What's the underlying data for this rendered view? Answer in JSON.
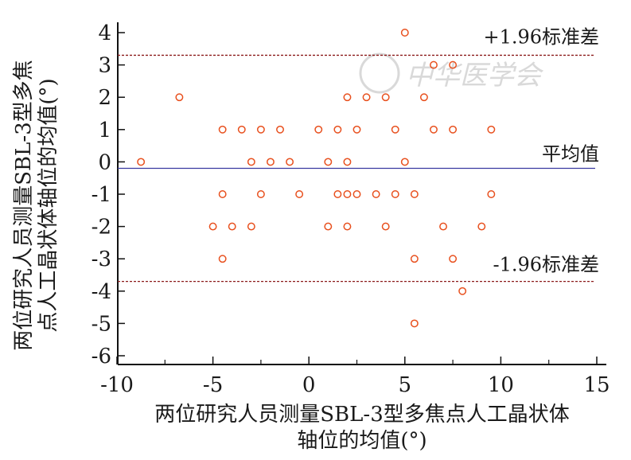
{
  "chart_data": {
    "type": "scatter",
    "title": "",
    "xlabel_line1": "两位研究人员测量SBL-3型多焦点人工晶状体",
    "xlabel_line2": "轴位的均值(°)",
    "ylabel_line1": "两位研究人员测量SBL-3型多焦",
    "ylabel_line2": "点人工晶状体轴位的均值(°)",
    "xlim": [
      -10,
      15
    ],
    "ylim": [
      -6.5,
      4.5
    ],
    "xticks": [
      -10,
      -5,
      0,
      5,
      10,
      15
    ],
    "xtick_labels": [
      "-10",
      "-5",
      "0",
      "5",
      "10",
      "15"
    ],
    "yticks": [
      4,
      3,
      2,
      1,
      0,
      -1,
      -2,
      -3,
      -4,
      -5,
      -6
    ],
    "ytick_labels": [
      "4",
      "3",
      "2",
      "1",
      "0",
      "-1",
      "-2",
      "-3",
      "-4",
      "-5",
      "-6"
    ],
    "grid": false,
    "reference_lines": [
      {
        "name": "upper_loa",
        "label": "+1.96标准差",
        "y": 3.3,
        "color": "#8b1a1a",
        "style": "dashed"
      },
      {
        "name": "mean",
        "label": "平均值",
        "y": -0.2,
        "color": "#3a3aa0",
        "style": "solid"
      },
      {
        "name": "lower_loa",
        "label": "-1.96标准差",
        "y": -3.7,
        "color": "#8b1a1a",
        "style": "dashed"
      }
    ],
    "points_color": "#e8501e",
    "points": [
      {
        "x": -8.75,
        "y": 0
      },
      {
        "x": -6.75,
        "y": 2
      },
      {
        "x": -5,
        "y": -2
      },
      {
        "x": -4.5,
        "y": 1
      },
      {
        "x": -4.5,
        "y": -1
      },
      {
        "x": -4.5,
        "y": -3
      },
      {
        "x": -4,
        "y": -2
      },
      {
        "x": -3.5,
        "y": 1
      },
      {
        "x": -3,
        "y": 0
      },
      {
        "x": -3,
        "y": -2
      },
      {
        "x": -2.5,
        "y": 1
      },
      {
        "x": -2.5,
        "y": -1
      },
      {
        "x": -2,
        "y": 0
      },
      {
        "x": -1.5,
        "y": 1
      },
      {
        "x": -1,
        "y": 0
      },
      {
        "x": -0.5,
        "y": -1
      },
      {
        "x": 0.5,
        "y": 1
      },
      {
        "x": 1,
        "y": 0
      },
      {
        "x": 1,
        "y": -2
      },
      {
        "x": 1.5,
        "y": 1
      },
      {
        "x": 1.5,
        "y": -1
      },
      {
        "x": 2,
        "y": 2
      },
      {
        "x": 2,
        "y": 0
      },
      {
        "x": 2,
        "y": -1
      },
      {
        "x": 2,
        "y": -2
      },
      {
        "x": 2.5,
        "y": 1
      },
      {
        "x": 2.5,
        "y": -1
      },
      {
        "x": 3,
        "y": 2
      },
      {
        "x": 3.5,
        "y": -1
      },
      {
        "x": 4,
        "y": 2
      },
      {
        "x": 4,
        "y": -2
      },
      {
        "x": 4.5,
        "y": 1
      },
      {
        "x": 4.5,
        "y": -1
      },
      {
        "x": 5,
        "y": 4
      },
      {
        "x": 5,
        "y": 0
      },
      {
        "x": 5.5,
        "y": -1
      },
      {
        "x": 5.5,
        "y": -3
      },
      {
        "x": 5.5,
        "y": -5
      },
      {
        "x": 6,
        "y": 2
      },
      {
        "x": 6.5,
        "y": 3
      },
      {
        "x": 6.5,
        "y": 1
      },
      {
        "x": 7,
        "y": -2
      },
      {
        "x": 7.5,
        "y": 3
      },
      {
        "x": 7.5,
        "y": 1
      },
      {
        "x": 7.5,
        "y": -3
      },
      {
        "x": 8,
        "y": -4
      },
      {
        "x": 9,
        "y": -2
      },
      {
        "x": 9.5,
        "y": 1
      },
      {
        "x": 9.5,
        "y": -1
      }
    ]
  },
  "watermark": {
    "text": "中华医学会",
    "color": "#d9d9d9"
  }
}
